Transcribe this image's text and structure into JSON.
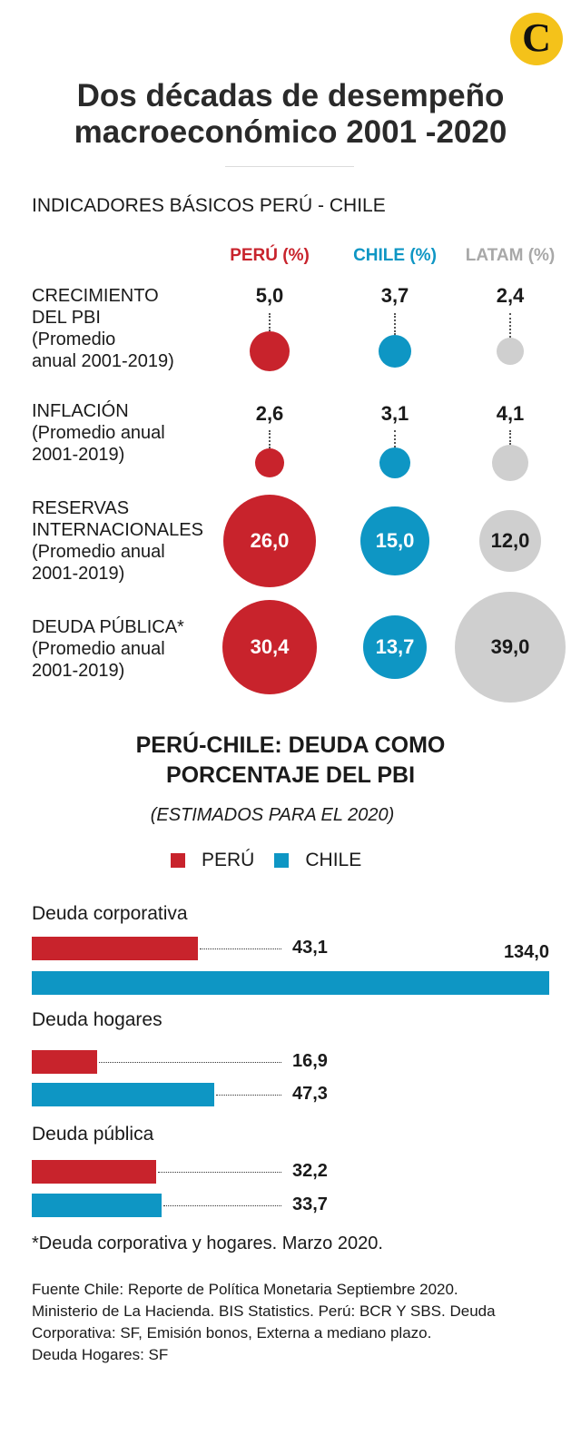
{
  "logo_letter": "C",
  "title_line1": "Dos décadas de desempeño",
  "title_line2": "macroeconómico 2001 -2020",
  "section1_title": "INDICADORES BÁSICOS PERÚ - CHILE",
  "colors": {
    "peru": "#c8232c",
    "chile": "#0e96c4",
    "latam": "#cfcfcf"
  },
  "columns": [
    "PERÚ (%)",
    "CHILE (%)",
    "LATAM (%)"
  ],
  "indicators": [
    {
      "label_lines": [
        "CRECIMIENTO",
        "DEL PBI"
      ],
      "sub_lines": [
        "(Promedio",
        "anual 2001-2019)"
      ],
      "values": [
        "5,0",
        "3,7",
        "2,4"
      ]
    },
    {
      "label_lines": [
        "INFLACIÓN"
      ],
      "sub_lines": [
        "(Promedio anual",
        "2001-2019)"
      ],
      "values": [
        "2,6",
        "3,1",
        "4,1"
      ]
    },
    {
      "label_lines": [
        "RESERVAS",
        "INTERNACIONALES"
      ],
      "sub_lines": [
        "(Promedio anual",
        "2001-2019)"
      ],
      "values": [
        "26,0",
        "15,0",
        "12,0"
      ]
    },
    {
      "label_lines": [
        "DEUDA PÚBLICA*"
      ],
      "sub_lines": [
        "(Promedio anual",
        "2001-2019)"
      ],
      "values": [
        "30,4",
        "13,7",
        "39,0"
      ]
    }
  ],
  "section2_title_line1": "PERÚ-CHILE: DEUDA COMO",
  "section2_title_line2": "PORCENTAJE DEL PBI",
  "section2_subtitle": "(ESTIMADOS PARA EL  2020)",
  "chart_data": {
    "type": "bar",
    "orientation": "horizontal",
    "title": "PERÚ-CHILE: DEUDA COMO PORCENTAJE DEL PBI",
    "subtitle": "(ESTIMADOS PARA EL  2020)",
    "legend": [
      "PERÚ",
      "CHILE"
    ],
    "categories": [
      "Deuda corporativa",
      "Deuda hogares",
      "Deuda pública"
    ],
    "series": [
      {
        "name": "PERÚ",
        "values": [
          43.1,
          16.9,
          32.2
        ],
        "labels": [
          "43,1",
          "16,9",
          "32,2"
        ]
      },
      {
        "name": "CHILE",
        "values": [
          134.0,
          47.3,
          33.7
        ],
        "labels": [
          "134,0",
          "47,3",
          "33,7"
        ]
      }
    ],
    "xlim": [
      0,
      134.0
    ]
  },
  "note": "*Deuda corporativa y hogares. Marzo 2020.",
  "source_lines": [
    "Fuente Chile: Reporte de Política Monetaria Septiembre 2020.",
    "Ministerio de La Hacienda. BIS Statistics. Perú: BCR Y SBS.  Deuda",
    "Corporativa: SF, Emisión bonos, Externa a mediano plazo.",
    "Deuda Hogares: SF"
  ]
}
